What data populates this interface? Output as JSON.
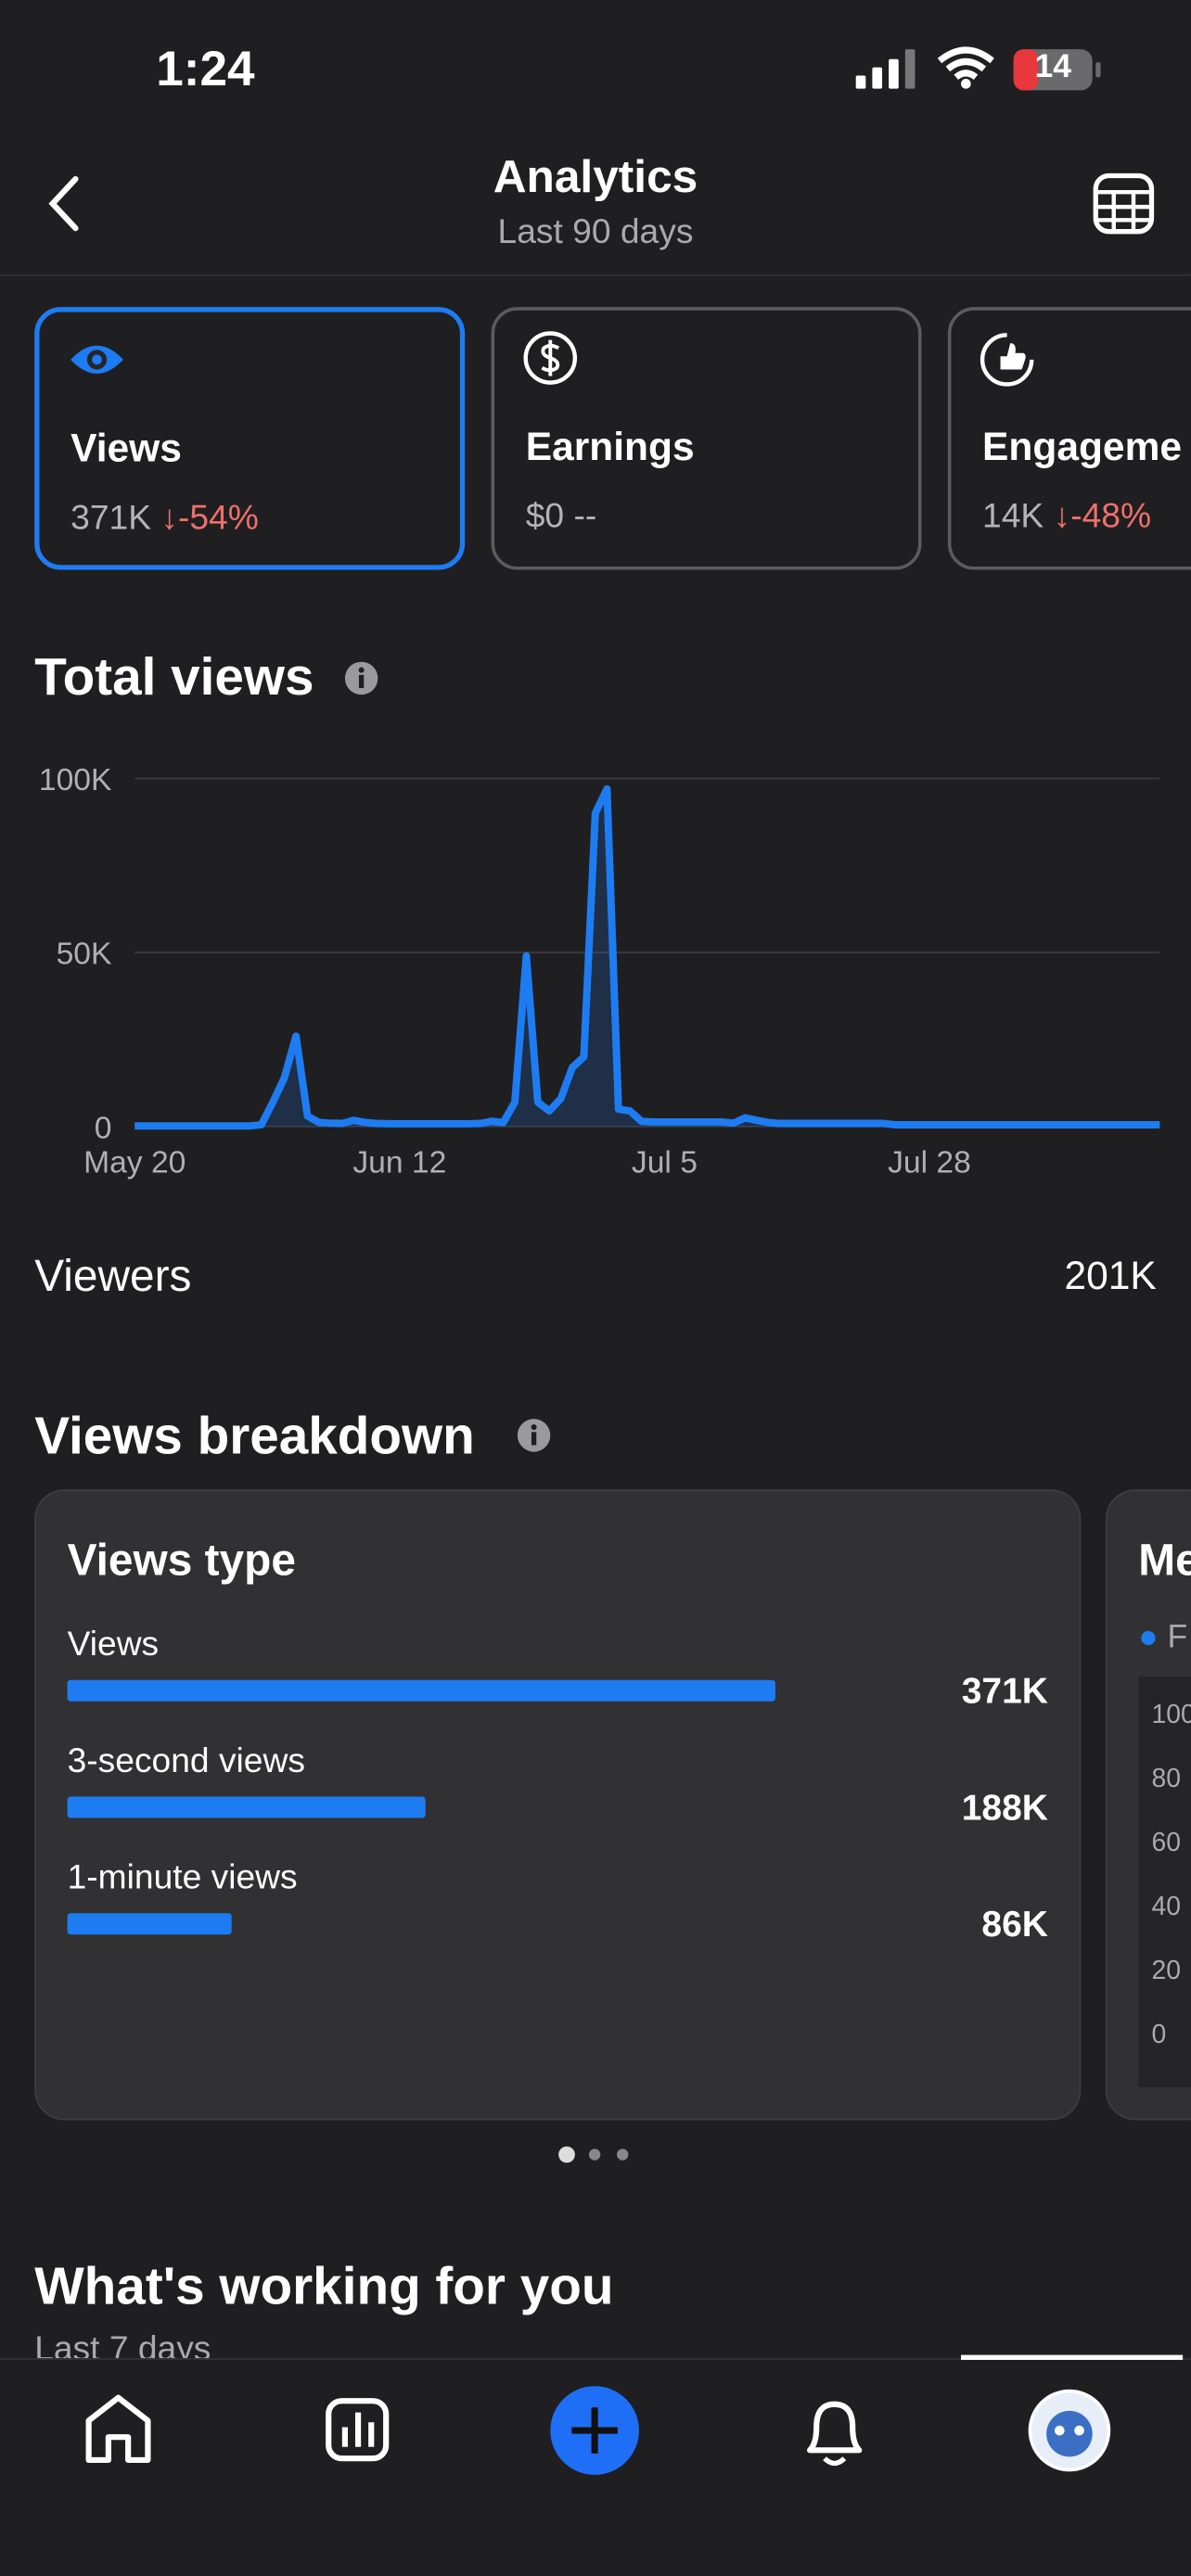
{
  "status_bar": {
    "time": "1:24",
    "battery": "14"
  },
  "header": {
    "title": "Analytics",
    "subtitle": "Last 90 days"
  },
  "metric_cards": [
    {
      "label": "Views",
      "value": "371K",
      "change": "-54%"
    },
    {
      "label": "Earnings",
      "value": "$0",
      "change": "--"
    },
    {
      "label": "Engageme",
      "value": "14K",
      "change": "-48%"
    }
  ],
  "total_views": {
    "title": "Total views"
  },
  "viewers": {
    "label": "Viewers",
    "value": "201K"
  },
  "views_breakdown": {
    "title": "Views breakdown",
    "card_title": "Views type",
    "next_card": {
      "title": "Me",
      "legend": "F",
      "ticks": [
        "100",
        "80",
        "60",
        "40",
        "20",
        "0"
      ]
    }
  },
  "working": {
    "title": "What's working for you",
    "subtitle": "Last 7 days"
  },
  "chart_data": [
    {
      "type": "line",
      "color": "#1e7cf2",
      "categories": [
        "May 20",
        null,
        null,
        null,
        null,
        null,
        null,
        null,
        null,
        null,
        null,
        null,
        null,
        null,
        null,
        null,
        null,
        null,
        null,
        null,
        null,
        null,
        null,
        "Jun 12",
        null,
        null,
        null,
        null,
        null,
        null,
        null,
        null,
        null,
        null,
        null,
        null,
        null,
        null,
        null,
        null,
        null,
        null,
        null,
        null,
        null,
        null,
        "Jul 5",
        null,
        null,
        null,
        null,
        null,
        null,
        null,
        null,
        null,
        null,
        null,
        null,
        null,
        null,
        null,
        null,
        null,
        null,
        null,
        null,
        null,
        null,
        "Jul 28",
        null,
        null,
        null,
        null,
        null,
        null,
        null,
        null,
        null,
        null,
        null,
        null,
        null,
        null,
        null,
        null,
        null,
        null,
        null,
        null
      ],
      "values": [
        200,
        200,
        200,
        200,
        200,
        200,
        200,
        200,
        200,
        200,
        200,
        500,
        7000,
        14000,
        26000,
        3000,
        1200,
        1000,
        900,
        1800,
        1200,
        900,
        800,
        800,
        800,
        800,
        800,
        800,
        800,
        800,
        900,
        1500,
        1200,
        7000,
        49000,
        7000,
        4500,
        8000,
        17000,
        20000,
        90000,
        97000,
        5000,
        4500,
        1500,
        1300,
        1300,
        1300,
        1300,
        1300,
        1300,
        1300,
        1000,
        2500,
        1800,
        1200,
        900,
        900,
        900,
        900,
        900,
        900,
        900,
        900,
        900,
        900,
        500,
        500,
        500,
        500,
        500,
        500,
        500,
        500,
        500,
        500,
        500,
        500,
        500,
        500,
        500,
        500,
        500,
        500,
        500,
        500,
        500,
        500,
        500,
        500
      ],
      "ylim": [
        0,
        100000
      ],
      "yticks": [
        {
          "value": 0,
          "label": "0"
        },
        {
          "value": 50000,
          "label": "50K"
        },
        {
          "value": 100000,
          "label": "100K"
        }
      ],
      "grid": true
    },
    {
      "type": "bar",
      "color": "#1e7cf2",
      "categories": [
        "Views",
        "3-second views",
        "1-minute views"
      ],
      "values": [
        371000,
        188000,
        86000
      ],
      "value_labels": [
        "371K",
        "188K",
        "86K"
      ]
    }
  ]
}
